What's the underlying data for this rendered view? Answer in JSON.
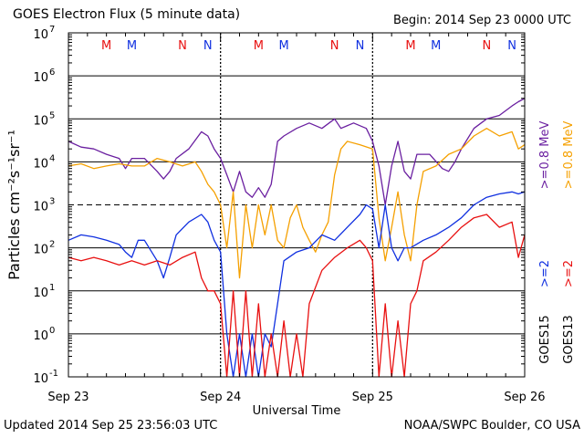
{
  "header": {
    "title": "GOES Electron Flux (5 minute data)",
    "begin": "Begin: 2014 Sep 23 0000 UTC"
  },
  "footer": {
    "updated": "Updated 2014 Sep 25 23:56:03 UTC",
    "credit": "NOAA/SWPC Boulder, CO USA"
  },
  "colors": {
    "goes15_high": "#6a1fa0",
    "goes13_high": "#f5a000",
    "goes15_low": "#1030e0",
    "goes13_low": "#e81010",
    "marker_m": "#e81010",
    "marker_n": "#1030e0"
  },
  "chart_data": {
    "type": "line",
    "title": "GOES Electron Flux (5 minute data)",
    "xlabel": "Universal Time",
    "ylabel": "Particles cm⁻²s⁻¹sr⁻¹",
    "yscale": "log",
    "ylim": [
      0.1,
      10000000
    ],
    "y_ticks": [
      {
        "exp": "-1",
        "value": 0.1
      },
      {
        "exp": "0",
        "value": 1
      },
      {
        "exp": "1",
        "value": 10
      },
      {
        "exp": "2",
        "value": 100
      },
      {
        "exp": "3",
        "value": 1000
      },
      {
        "exp": "4",
        "value": 10000
      },
      {
        "exp": "5",
        "value": 100000
      },
      {
        "exp": "6",
        "value": 1000000
      },
      {
        "exp": "7",
        "value": 10000000
      }
    ],
    "xlim": [
      "2014-09-23 00:00",
      "2014-09-26 00:00"
    ],
    "x_ticks": [
      {
        "label": "Sep 23",
        "x": "2014-09-23 00:00"
      },
      {
        "label": "Sep 24",
        "x": "2014-09-24 00:00"
      },
      {
        "label": "Sep 25",
        "x": "2014-09-25 00:00"
      },
      {
        "label": "Sep 26",
        "x": "2014-09-26 00:00"
      }
    ],
    "threshold_dashed": 1000,
    "grid": true,
    "legend": [
      {
        "label": ">=0.8 MeV",
        "color": "#6a1fa0"
      },
      {
        "label": ">=0.8 MeV",
        "color": "#f5a000"
      },
      {
        "label": ">=2",
        "color": "#1030e0"
      },
      {
        "label": ">=2",
        "color": "#e81010"
      },
      {
        "label": "GOES15",
        "color": "#000000"
      },
      {
        "label": "GOES13",
        "color": "#000000"
      }
    ],
    "markers": [
      {
        "label": "M",
        "x": "2014-09-23 06:00",
        "color": "#e81010"
      },
      {
        "label": "M",
        "x": "2014-09-23 10:00",
        "color": "#1030e0"
      },
      {
        "label": "N",
        "x": "2014-09-23 18:00",
        "color": "#e81010"
      },
      {
        "label": "N",
        "x": "2014-09-23 22:00",
        "color": "#1030e0"
      },
      {
        "label": "M",
        "x": "2014-09-24 06:00",
        "color": "#e81010"
      },
      {
        "label": "M",
        "x": "2014-09-24 10:00",
        "color": "#1030e0"
      },
      {
        "label": "N",
        "x": "2014-09-24 18:00",
        "color": "#e81010"
      },
      {
        "label": "N",
        "x": "2014-09-24 22:00",
        "color": "#1030e0"
      },
      {
        "label": "M",
        "x": "2014-09-25 06:00",
        "color": "#e81010"
      },
      {
        "label": "M",
        "x": "2014-09-25 10:00",
        "color": "#1030e0"
      },
      {
        "label": "N",
        "x": "2014-09-25 18:00",
        "color": "#e81010"
      },
      {
        "label": "N",
        "x": "2014-09-25 22:00",
        "color": "#1030e0"
      }
    ],
    "series": [
      {
        "label": "GOES15 >=0.8 MeV",
        "color": "#6a1fa0",
        "points": [
          [
            "2014-09-23 00:00",
            30000
          ],
          [
            "2014-09-23 02:00",
            22000
          ],
          [
            "2014-09-23 04:00",
            20000
          ],
          [
            "2014-09-23 06:00",
            15000
          ],
          [
            "2014-09-23 08:00",
            12000
          ],
          [
            "2014-09-23 09:00",
            7000
          ],
          [
            "2014-09-23 10:00",
            12000
          ],
          [
            "2014-09-23 12:00",
            12000
          ],
          [
            "2014-09-23 14:00",
            6000
          ],
          [
            "2014-09-23 15:00",
            4000
          ],
          [
            "2014-09-23 16:00",
            6000
          ],
          [
            "2014-09-23 17:00",
            12000
          ],
          [
            "2014-09-23 19:00",
            20000
          ],
          [
            "2014-09-23 21:00",
            50000
          ],
          [
            "2014-09-23 22:00",
            40000
          ],
          [
            "2014-09-23 23:00",
            20000
          ],
          [
            "2014-09-24 00:00",
            12000
          ],
          [
            "2014-09-24 01:00",
            5000
          ],
          [
            "2014-09-24 02:00",
            2000
          ],
          [
            "2014-09-24 03:00",
            6000
          ],
          [
            "2014-09-24 04:00",
            2000
          ],
          [
            "2014-09-24 05:00",
            1500
          ],
          [
            "2014-09-24 06:00",
            2500
          ],
          [
            "2014-09-24 07:00",
            1500
          ],
          [
            "2014-09-24 08:00",
            3000
          ],
          [
            "2014-09-24 09:00",
            30000
          ],
          [
            "2014-09-24 10:00",
            40000
          ],
          [
            "2014-09-24 12:00",
            60000
          ],
          [
            "2014-09-24 14:00",
            80000
          ],
          [
            "2014-09-24 16:00",
            60000
          ],
          [
            "2014-09-24 18:00",
            100000
          ],
          [
            "2014-09-24 19:00",
            60000
          ],
          [
            "2014-09-24 21:00",
            80000
          ],
          [
            "2014-09-24 23:00",
            60000
          ],
          [
            "2014-09-25 00:00",
            30000
          ],
          [
            "2014-09-25 01:00",
            8000
          ],
          [
            "2014-09-25 02:00",
            1000
          ],
          [
            "2014-09-25 03:00",
            8000
          ],
          [
            "2014-09-25 04:00",
            30000
          ],
          [
            "2014-09-25 05:00",
            6000
          ],
          [
            "2014-09-25 06:00",
            4000
          ],
          [
            "2014-09-25 07:00",
            15000
          ],
          [
            "2014-09-25 09:00",
            15000
          ],
          [
            "2014-09-25 11:00",
            7000
          ],
          [
            "2014-09-25 12:00",
            6000
          ],
          [
            "2014-09-25 13:00",
            10000
          ],
          [
            "2014-09-25 14:00",
            20000
          ],
          [
            "2014-09-25 16:00",
            60000
          ],
          [
            "2014-09-25 18:00",
            100000
          ],
          [
            "2014-09-25 20:00",
            120000
          ],
          [
            "2014-09-25 22:00",
            200000
          ],
          [
            "2014-09-25 23:00",
            250000
          ],
          [
            "2014-09-26 00:00",
            300000
          ]
        ]
      },
      {
        "label": "GOES13 >=0.8 MeV",
        "color": "#f5a000",
        "points": [
          [
            "2014-09-23 00:00",
            8000
          ],
          [
            "2014-09-23 02:00",
            9000
          ],
          [
            "2014-09-23 04:00",
            7000
          ],
          [
            "2014-09-23 06:00",
            8000
          ],
          [
            "2014-09-23 08:00",
            9000
          ],
          [
            "2014-09-23 10:00",
            8000
          ],
          [
            "2014-09-23 12:00",
            8000
          ],
          [
            "2014-09-23 14:00",
            12000
          ],
          [
            "2014-09-23 16:00",
            10000
          ],
          [
            "2014-09-23 18:00",
            8000
          ],
          [
            "2014-09-23 20:00",
            10000
          ],
          [
            "2014-09-23 21:00",
            6000
          ],
          [
            "2014-09-23 22:00",
            3000
          ],
          [
            "2014-09-23 23:00",
            2000
          ],
          [
            "2014-09-24 00:00",
            1000
          ],
          [
            "2014-09-24 01:00",
            100
          ],
          [
            "2014-09-24 02:00",
            2000
          ],
          [
            "2014-09-24 03:00",
            20
          ],
          [
            "2014-09-24 04:00",
            1000
          ],
          [
            "2014-09-24 05:00",
            100
          ],
          [
            "2014-09-24 06:00",
            1000
          ],
          [
            "2014-09-24 07:00",
            200
          ],
          [
            "2014-09-24 08:00",
            1000
          ],
          [
            "2014-09-24 09:00",
            150
          ],
          [
            "2014-09-24 10:00",
            100
          ],
          [
            "2014-09-24 11:00",
            500
          ],
          [
            "2014-09-24 12:00",
            1000
          ],
          [
            "2014-09-24 13:00",
            300
          ],
          [
            "2014-09-24 14:00",
            150
          ],
          [
            "2014-09-24 15:00",
            80
          ],
          [
            "2014-09-24 16:00",
            200
          ],
          [
            "2014-09-24 17:00",
            400
          ],
          [
            "2014-09-24 18:00",
            5000
          ],
          [
            "2014-09-24 19:00",
            20000
          ],
          [
            "2014-09-24 20:00",
            30000
          ],
          [
            "2014-09-24 22:00",
            25000
          ],
          [
            "2014-09-25 00:00",
            20000
          ],
          [
            "2014-09-25 01:00",
            500
          ],
          [
            "2014-09-25 02:00",
            50
          ],
          [
            "2014-09-25 03:00",
            300
          ],
          [
            "2014-09-25 04:00",
            2000
          ],
          [
            "2014-09-25 05:00",
            200
          ],
          [
            "2014-09-25 06:00",
            50
          ],
          [
            "2014-09-25 07:00",
            1000
          ],
          [
            "2014-09-25 08:00",
            6000
          ],
          [
            "2014-09-25 10:00",
            8000
          ],
          [
            "2014-09-25 12:00",
            15000
          ],
          [
            "2014-09-25 14:00",
            20000
          ],
          [
            "2014-09-25 16:00",
            40000
          ],
          [
            "2014-09-25 18:00",
            60000
          ],
          [
            "2014-09-25 20:00",
            40000
          ],
          [
            "2014-09-25 22:00",
            50000
          ],
          [
            "2014-09-25 23:00",
            20000
          ],
          [
            "2014-09-26 00:00",
            25000
          ]
        ]
      },
      {
        "label": "GOES15 >=2 MeV",
        "color": "#1030e0",
        "points": [
          [
            "2014-09-23 00:00",
            150
          ],
          [
            "2014-09-23 02:00",
            200
          ],
          [
            "2014-09-23 04:00",
            180
          ],
          [
            "2014-09-23 06:00",
            150
          ],
          [
            "2014-09-23 08:00",
            120
          ],
          [
            "2014-09-23 09:00",
            80
          ],
          [
            "2014-09-23 10:00",
            60
          ],
          [
            "2014-09-23 11:00",
            150
          ],
          [
            "2014-09-23 12:00",
            150
          ],
          [
            "2014-09-23 14:00",
            50
          ],
          [
            "2014-09-23 15:00",
            20
          ],
          [
            "2014-09-23 16:00",
            60
          ],
          [
            "2014-09-23 17:00",
            200
          ],
          [
            "2014-09-23 19:00",
            400
          ],
          [
            "2014-09-23 21:00",
            600
          ],
          [
            "2014-09-23 22:00",
            400
          ],
          [
            "2014-09-23 23:00",
            150
          ],
          [
            "2014-09-24 00:00",
            80
          ],
          [
            "2014-09-24 01:00",
            1
          ],
          [
            "2014-09-24 02:00",
            0.1
          ],
          [
            "2014-09-24 03:00",
            1
          ],
          [
            "2014-09-24 04:00",
            0.1
          ],
          [
            "2014-09-24 05:00",
            1
          ],
          [
            "2014-09-24 06:00",
            0.1
          ],
          [
            "2014-09-24 07:00",
            1
          ],
          [
            "2014-09-24 08:00",
            0.5
          ],
          [
            "2014-09-24 09:00",
            5
          ],
          [
            "2014-09-24 10:00",
            50
          ],
          [
            "2014-09-24 12:00",
            80
          ],
          [
            "2014-09-24 14:00",
            100
          ],
          [
            "2014-09-24 16:00",
            200
          ],
          [
            "2014-09-24 18:00",
            150
          ],
          [
            "2014-09-24 20:00",
            300
          ],
          [
            "2014-09-24 22:00",
            600
          ],
          [
            "2014-09-24 23:00",
            1000
          ],
          [
            "2014-09-25 00:00",
            800
          ],
          [
            "2014-09-25 01:00",
            100
          ],
          [
            "2014-09-25 02:00",
            1000
          ],
          [
            "2014-09-25 03:00",
            100
          ],
          [
            "2014-09-25 04:00",
            50
          ],
          [
            "2014-09-25 05:00",
            100
          ],
          [
            "2014-09-25 06:00",
            100
          ],
          [
            "2014-09-25 08:00",
            150
          ],
          [
            "2014-09-25 10:00",
            200
          ],
          [
            "2014-09-25 12:00",
            300
          ],
          [
            "2014-09-25 14:00",
            500
          ],
          [
            "2014-09-25 16:00",
            1000
          ],
          [
            "2014-09-25 18:00",
            1500
          ],
          [
            "2014-09-25 20:00",
            1800
          ],
          [
            "2014-09-25 22:00",
            2000
          ],
          [
            "2014-09-25 23:00",
            1800
          ],
          [
            "2014-09-26 00:00",
            2000
          ]
        ]
      },
      {
        "label": "GOES13 >=2 MeV",
        "color": "#e81010",
        "points": [
          [
            "2014-09-23 00:00",
            60
          ],
          [
            "2014-09-23 02:00",
            50
          ],
          [
            "2014-09-23 04:00",
            60
          ],
          [
            "2014-09-23 06:00",
            50
          ],
          [
            "2014-09-23 08:00",
            40
          ],
          [
            "2014-09-23 10:00",
            50
          ],
          [
            "2014-09-23 12:00",
            40
          ],
          [
            "2014-09-23 14:00",
            50
          ],
          [
            "2014-09-23 16:00",
            40
          ],
          [
            "2014-09-23 18:00",
            60
          ],
          [
            "2014-09-23 20:00",
            80
          ],
          [
            "2014-09-23 21:00",
            20
          ],
          [
            "2014-09-23 22:00",
            10
          ],
          [
            "2014-09-23 23:00",
            10
          ],
          [
            "2014-09-24 00:00",
            5
          ],
          [
            "2014-09-24 01:00",
            0.1
          ],
          [
            "2014-09-24 02:00",
            10
          ],
          [
            "2014-09-24 03:00",
            0.1
          ],
          [
            "2014-09-24 04:00",
            10
          ],
          [
            "2014-09-24 05:00",
            0.1
          ],
          [
            "2014-09-24 06:00",
            5
          ],
          [
            "2014-09-24 07:00",
            0.1
          ],
          [
            "2014-09-24 08:00",
            1
          ],
          [
            "2014-09-24 09:00",
            0.1
          ],
          [
            "2014-09-24 10:00",
            2
          ],
          [
            "2014-09-24 11:00",
            0.1
          ],
          [
            "2014-09-24 12:00",
            1
          ],
          [
            "2014-09-24 13:00",
            0.1
          ],
          [
            "2014-09-24 14:00",
            5
          ],
          [
            "2014-09-24 16:00",
            30
          ],
          [
            "2014-09-24 18:00",
            60
          ],
          [
            "2014-09-24 20:00",
            100
          ],
          [
            "2014-09-24 22:00",
            150
          ],
          [
            "2014-09-24 23:00",
            100
          ],
          [
            "2014-09-25 00:00",
            50
          ],
          [
            "2014-09-25 01:00",
            0.1
          ],
          [
            "2014-09-25 02:00",
            5
          ],
          [
            "2014-09-25 03:00",
            0.1
          ],
          [
            "2014-09-25 04:00",
            2
          ],
          [
            "2014-09-25 05:00",
            0.1
          ],
          [
            "2014-09-25 06:00",
            5
          ],
          [
            "2014-09-25 07:00",
            10
          ],
          [
            "2014-09-25 08:00",
            50
          ],
          [
            "2014-09-25 10:00",
            80
          ],
          [
            "2014-09-25 12:00",
            150
          ],
          [
            "2014-09-25 14:00",
            300
          ],
          [
            "2014-09-25 16:00",
            500
          ],
          [
            "2014-09-25 18:00",
            600
          ],
          [
            "2014-09-25 20:00",
            300
          ],
          [
            "2014-09-25 22:00",
            400
          ],
          [
            "2014-09-25 23:00",
            60
          ],
          [
            "2014-09-26 00:00",
            200
          ]
        ]
      }
    ]
  }
}
